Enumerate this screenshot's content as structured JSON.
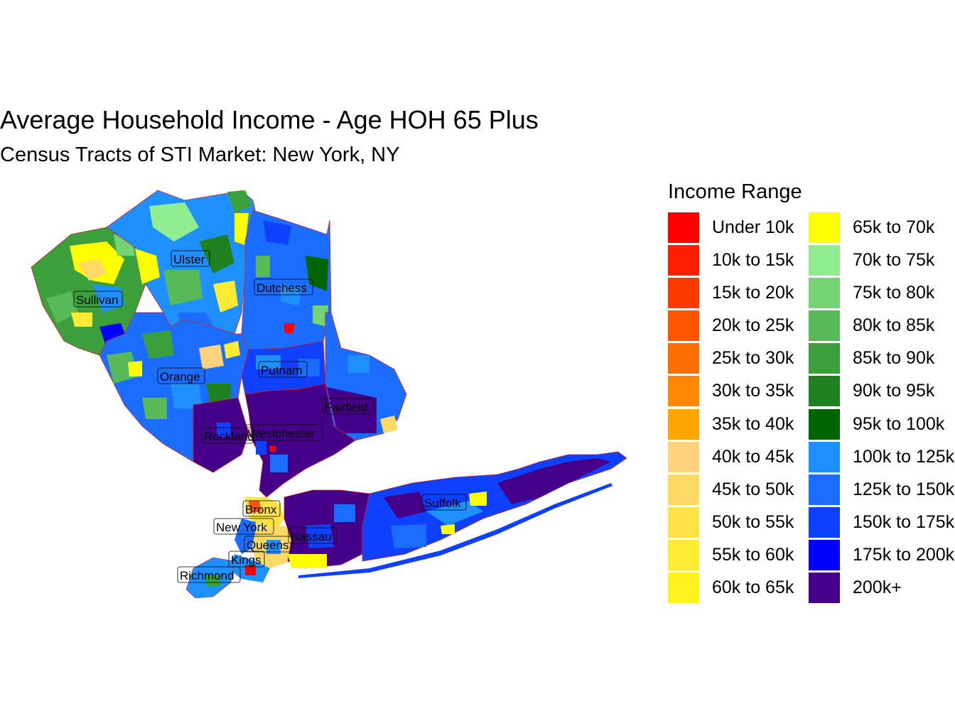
{
  "title": "Average Household Income - Age HOH 65 Plus",
  "subtitle": "Census Tracts of STI Market: New York, NY",
  "legend": {
    "title": "Income Range",
    "placement": "right",
    "items": [
      {
        "label": "Under 10k",
        "color": "#FF0000"
      },
      {
        "label": "10k to 15k",
        "color": "#FF1F00"
      },
      {
        "label": "15k to 20k",
        "color": "#FF3A00"
      },
      {
        "label": "20k to 25k",
        "color": "#FF5500"
      },
      {
        "label": "25k to 30k",
        "color": "#FF6E00"
      },
      {
        "label": "30k to 35k",
        "color": "#FF8800"
      },
      {
        "label": "35k to 40k",
        "color": "#FFA500"
      },
      {
        "label": "40k to 45k",
        "color": "#FFD27F"
      },
      {
        "label": "45k to 50k",
        "color": "#FFD966"
      },
      {
        "label": "50k to 55k",
        "color": "#FFE347"
      },
      {
        "label": "55k to 60k",
        "color": "#FFEB33"
      },
      {
        "label": "60k to 65k",
        "color": "#FFF21F"
      },
      {
        "label": "65k to 70k",
        "color": "#FFFF00"
      },
      {
        "label": "70k to 75k",
        "color": "#90EE90"
      },
      {
        "label": "75k to 80k",
        "color": "#74D474"
      },
      {
        "label": "80k to 85k",
        "color": "#57B957"
      },
      {
        "label": "85k to 90k",
        "color": "#3B9F3B"
      },
      {
        "label": "90k to 95k",
        "color": "#1E801E"
      },
      {
        "label": "95k to 100k",
        "color": "#006400"
      },
      {
        "label": "100k to 125k",
        "color": "#1E90FF"
      },
      {
        "label": "125k to 150k",
        "color": "#1A6DFF"
      },
      {
        "label": "150k to 175k",
        "color": "#1040FF"
      },
      {
        "label": "175k to 200k",
        "color": "#0000FF"
      },
      {
        "label": "200k+",
        "color": "#440088"
      }
    ]
  },
  "map": {
    "counties": [
      {
        "name": "Ulster",
        "dominant_range": "100k to 125k"
      },
      {
        "name": "Sullivan",
        "dominant_range": "85k to 90k"
      },
      {
        "name": "Dutchess",
        "dominant_range": "125k to 150k"
      },
      {
        "name": "Orange",
        "dominant_range": "125k to 150k"
      },
      {
        "name": "Putnam",
        "dominant_range": "150k to 175k"
      },
      {
        "name": "Fairfield",
        "dominant_range": "200k+"
      },
      {
        "name": "Rockland",
        "dominant_range": "200k+"
      },
      {
        "name": "Westchester",
        "dominant_range": "200k+"
      },
      {
        "name": "Bronx",
        "dominant_range": "50k to 55k"
      },
      {
        "name": "New York",
        "dominant_range": "200k+"
      },
      {
        "name": "Queens",
        "dominant_range": "100k to 125k"
      },
      {
        "name": "Kings",
        "dominant_range": "100k to 125k"
      },
      {
        "name": "Nassau",
        "dominant_range": "200k+"
      },
      {
        "name": "Suffolk",
        "dominant_range": "150k to 175k"
      },
      {
        "name": "Richmond",
        "dominant_range": "100k to 125k"
      }
    ]
  }
}
